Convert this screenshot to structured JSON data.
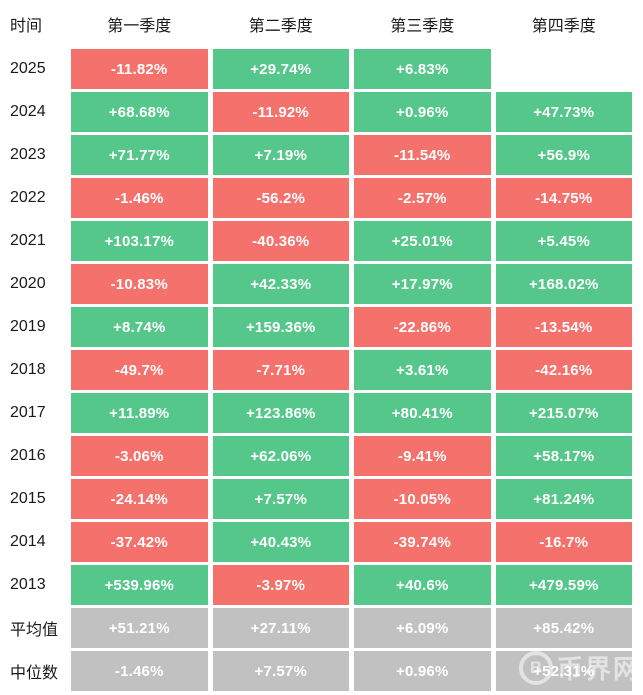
{
  "chart_data": {
    "type": "heatmap",
    "title": "",
    "row_header_label": "时间",
    "columns": [
      "第一季度",
      "第二季度",
      "第三季度",
      "第四季度"
    ],
    "rows": [
      {
        "label": "2025",
        "cells": [
          {
            "value": "-11.82%",
            "color": "red"
          },
          {
            "value": "+29.74%",
            "color": "green"
          },
          {
            "value": "+6.83%",
            "color": "green"
          },
          {
            "value": "",
            "color": "none"
          }
        ]
      },
      {
        "label": "2024",
        "cells": [
          {
            "value": "+68.68%",
            "color": "green"
          },
          {
            "value": "-11.92%",
            "color": "red"
          },
          {
            "value": "+0.96%",
            "color": "green"
          },
          {
            "value": "+47.73%",
            "color": "green"
          }
        ]
      },
      {
        "label": "2023",
        "cells": [
          {
            "value": "+71.77%",
            "color": "green"
          },
          {
            "value": "+7.19%",
            "color": "green"
          },
          {
            "value": "-11.54%",
            "color": "red"
          },
          {
            "value": "+56.9%",
            "color": "green"
          }
        ]
      },
      {
        "label": "2022",
        "cells": [
          {
            "value": "-1.46%",
            "color": "red"
          },
          {
            "value": "-56.2%",
            "color": "red"
          },
          {
            "value": "-2.57%",
            "color": "red"
          },
          {
            "value": "-14.75%",
            "color": "red"
          }
        ]
      },
      {
        "label": "2021",
        "cells": [
          {
            "value": "+103.17%",
            "color": "green"
          },
          {
            "value": "-40.36%",
            "color": "red"
          },
          {
            "value": "+25.01%",
            "color": "green"
          },
          {
            "value": "+5.45%",
            "color": "green"
          }
        ]
      },
      {
        "label": "2020",
        "cells": [
          {
            "value": "-10.83%",
            "color": "red"
          },
          {
            "value": "+42.33%",
            "color": "green"
          },
          {
            "value": "+17.97%",
            "color": "green"
          },
          {
            "value": "+168.02%",
            "color": "green"
          }
        ]
      },
      {
        "label": "2019",
        "cells": [
          {
            "value": "+8.74%",
            "color": "green"
          },
          {
            "value": "+159.36%",
            "color": "green"
          },
          {
            "value": "-22.86%",
            "color": "red"
          },
          {
            "value": "-13.54%",
            "color": "red"
          }
        ]
      },
      {
        "label": "2018",
        "cells": [
          {
            "value": "-49.7%",
            "color": "red"
          },
          {
            "value": "-7.71%",
            "color": "red"
          },
          {
            "value": "+3.61%",
            "color": "green"
          },
          {
            "value": "-42.16%",
            "color": "red"
          }
        ]
      },
      {
        "label": "2017",
        "cells": [
          {
            "value": "+11.89%",
            "color": "green"
          },
          {
            "value": "+123.86%",
            "color": "green"
          },
          {
            "value": "+80.41%",
            "color": "green"
          },
          {
            "value": "+215.07%",
            "color": "green"
          }
        ]
      },
      {
        "label": "2016",
        "cells": [
          {
            "value": "-3.06%",
            "color": "red"
          },
          {
            "value": "+62.06%",
            "color": "green"
          },
          {
            "value": "-9.41%",
            "color": "red"
          },
          {
            "value": "+58.17%",
            "color": "green"
          }
        ]
      },
      {
        "label": "2015",
        "cells": [
          {
            "value": "-24.14%",
            "color": "red"
          },
          {
            "value": "+7.57%",
            "color": "green"
          },
          {
            "value": "-10.05%",
            "color": "red"
          },
          {
            "value": "+81.24%",
            "color": "green"
          }
        ]
      },
      {
        "label": "2014",
        "cells": [
          {
            "value": "-37.42%",
            "color": "red"
          },
          {
            "value": "+40.43%",
            "color": "green"
          },
          {
            "value": "-39.74%",
            "color": "red"
          },
          {
            "value": "-16.7%",
            "color": "red"
          }
        ]
      },
      {
        "label": "2013",
        "cells": [
          {
            "value": "+539.96%",
            "color": "green"
          },
          {
            "value": "-3.97%",
            "color": "red"
          },
          {
            "value": "+40.6%",
            "color": "green"
          },
          {
            "value": "+479.59%",
            "color": "green"
          }
        ]
      },
      {
        "label": "平均值",
        "cells": [
          {
            "value": "+51.21%",
            "color": "gray"
          },
          {
            "value": "+27.11%",
            "color": "gray"
          },
          {
            "value": "+6.09%",
            "color": "gray"
          },
          {
            "value": "+85.42%",
            "color": "gray"
          }
        ]
      },
      {
        "label": "中位数",
        "cells": [
          {
            "value": "-1.46%",
            "color": "gray"
          },
          {
            "value": "+7.57%",
            "color": "gray"
          },
          {
            "value": "+0.96%",
            "color": "gray"
          },
          {
            "value": "+52.31%",
            "color": "gray"
          }
        ]
      }
    ],
    "color_legend": {
      "green": "positive return",
      "red": "negative return",
      "gray": "summary row",
      "none": "no data"
    }
  },
  "colors": {
    "green": "#55c78b",
    "red": "#f5716c",
    "gray": "#c1c1c1",
    "header_text": "#1a1a1a",
    "cell_text": "#ffffff"
  },
  "watermark": {
    "icon_glyph": "B",
    "text": "币界网"
  }
}
